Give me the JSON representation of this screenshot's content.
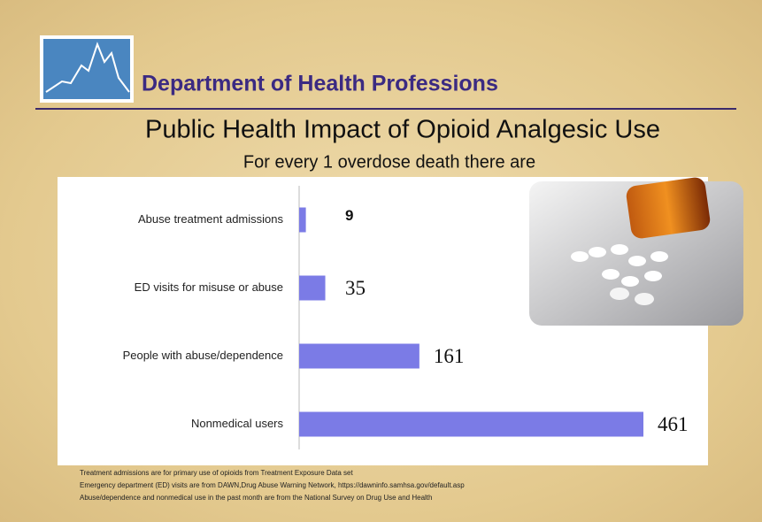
{
  "header": {
    "title": "Department of Health Professions"
  },
  "chart_data": {
    "type": "bar",
    "orientation": "horizontal",
    "title": "Public Health Impact of Opioid Analgesic Use",
    "subtitle": "For every 1 overdose death there are",
    "categories": [
      "Abuse treatment admissions",
      "ED visits for misuse or abuse",
      "People with abuse/dependence",
      "Nonmedical users"
    ],
    "values": [
      9,
      35,
      161,
      461
    ],
    "color": "#7b7be6"
  },
  "footnotes": [
    "Treatment admissions are for primary use of opioids from Treatment Exposure Data set",
    "Emergency department (ED) visits are from DAWN,Drug Abuse Warning Network, https://dawninfo.samhsa.gov/default.asp",
    "Abuse/dependence and nonmedical use in the past month are from the National Survey on Drug Use and Health"
  ]
}
